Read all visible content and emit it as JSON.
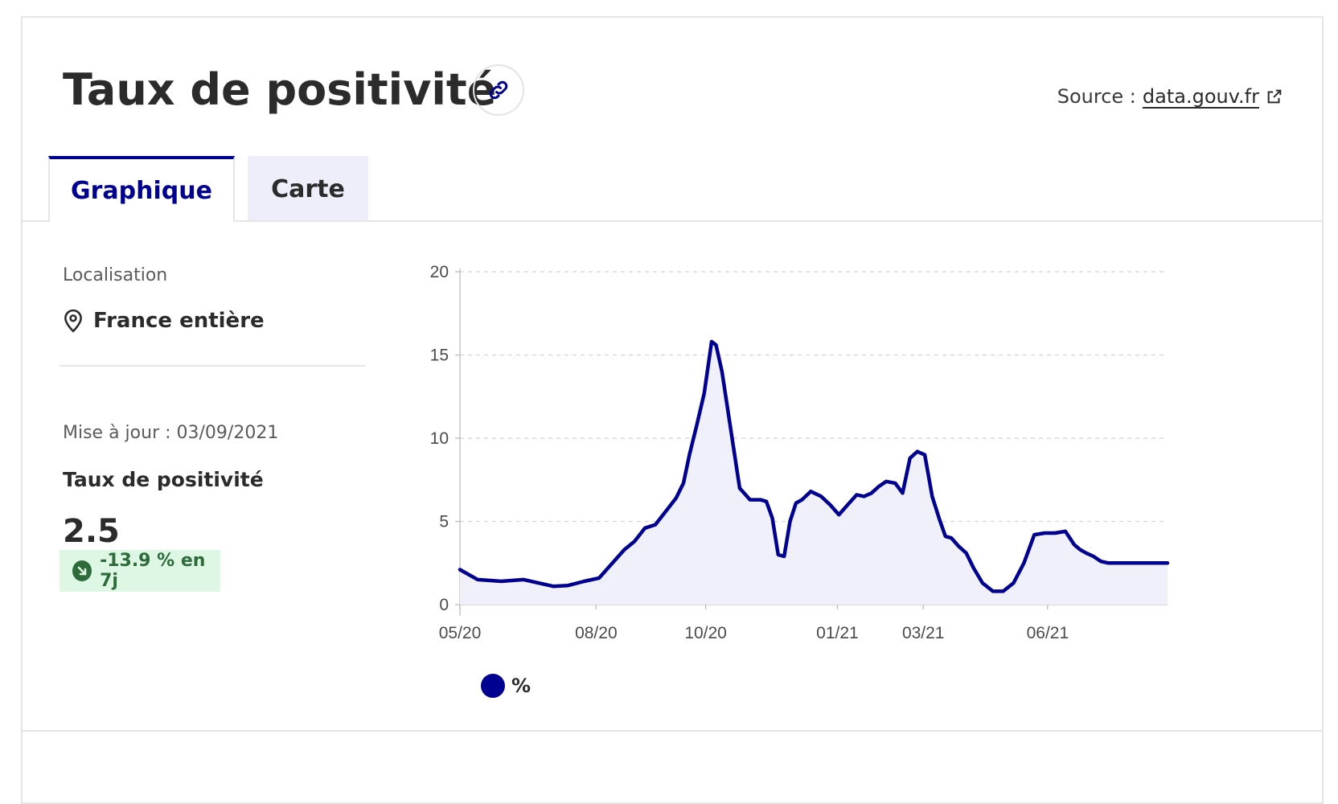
{
  "header": {
    "title": "Taux de positivité",
    "source_label": "Source :",
    "source_link": "data.gouv.fr"
  },
  "tabs": [
    {
      "label": "Graphique",
      "active": true
    },
    {
      "label": "Carte",
      "active": false
    }
  ],
  "sidebar": {
    "location_label": "Localisation",
    "location_value": "France entière",
    "update_text": "Mise à jour : 03/09/2021",
    "metric_label": "Taux de positivité",
    "metric_value": "2.5",
    "trend_text": "-13.9 % en 7j"
  },
  "legend": {
    "label": "%"
  },
  "colors": {
    "accent": "#000091",
    "area_fill": "#f0f0fb",
    "trend_bg": "#ddf7e4",
    "trend_fg": "#2e6b3b"
  },
  "icons": {
    "link": "link-icon",
    "external": "external-link-icon",
    "location": "map-pin-icon",
    "trend": "arrow-down-right-icon"
  },
  "chart_data": {
    "type": "area",
    "title": "",
    "xlabel": "",
    "ylabel": "",
    "ylim": [
      0,
      20
    ],
    "yticks": [
      0,
      5,
      10,
      15,
      20
    ],
    "xticks": [
      "05/20",
      "08/20",
      "10/20",
      "01/21",
      "03/21",
      "06/21"
    ],
    "grid": true,
    "legend_position": "bottom-left",
    "series": [
      {
        "name": "%",
        "x": [
          "2020-05-13",
          "2020-05-25",
          "2020-06-10",
          "2020-06-25",
          "2020-07-05",
          "2020-07-15",
          "2020-07-25",
          "2020-08-05",
          "2020-08-15",
          "2020-08-25",
          "2020-09-01",
          "2020-09-08",
          "2020-09-15",
          "2020-09-22",
          "2020-09-29",
          "2020-10-06",
          "2020-10-11",
          "2020-10-15",
          "2020-10-20",
          "2020-10-25",
          "2020-10-30",
          "2020-11-02",
          "2020-11-06",
          "2020-11-12",
          "2020-11-18",
          "2020-11-25",
          "2020-12-02",
          "2020-12-06",
          "2020-12-10",
          "2020-12-14",
          "2020-12-18",
          "2020-12-22",
          "2020-12-26",
          "2020-12-30",
          "2021-01-05",
          "2021-01-12",
          "2021-01-18",
          "2021-01-24",
          "2021-01-30",
          "2021-02-05",
          "2021-02-10",
          "2021-02-15",
          "2021-02-20",
          "2021-02-25",
          "2021-03-03",
          "2021-03-08",
          "2021-03-13",
          "2021-03-18",
          "2021-03-23",
          "2021-03-28",
          "2021-04-02",
          "2021-04-06",
          "2021-04-10",
          "2021-04-15",
          "2021-04-20",
          "2021-04-25",
          "2021-05-01",
          "2021-05-08",
          "2021-05-15",
          "2021-05-22",
          "2021-05-29",
          "2021-06-05",
          "2021-06-12",
          "2021-06-19",
          "2021-06-26",
          "2021-07-02",
          "2021-07-06",
          "2021-07-10",
          "2021-07-15",
          "2021-07-20",
          "2021-07-25",
          "2021-07-30",
          "2021-08-05",
          "2021-08-12",
          "2021-08-20",
          "2021-08-28",
          "2021-09-03"
        ],
        "values": [
          2.1,
          1.5,
          1.4,
          1.5,
          1.3,
          1.1,
          1.15,
          1.4,
          1.6,
          2.6,
          3.3,
          3.8,
          4.6,
          4.8,
          5.6,
          6.4,
          7.3,
          9.0,
          10.8,
          12.7,
          15.8,
          15.6,
          14.0,
          10.5,
          7.0,
          6.3,
          6.3,
          6.2,
          5.2,
          3.0,
          2.9,
          5.0,
          6.1,
          6.3,
          6.8,
          6.5,
          6.0,
          5.4,
          6.0,
          6.6,
          6.5,
          6.7,
          7.1,
          7.4,
          7.3,
          6.7,
          8.8,
          9.2,
          9.0,
          6.5,
          5.1,
          4.1,
          4.0,
          3.5,
          3.1,
          2.2,
          1.3,
          0.8,
          0.8,
          1.3,
          2.5,
          4.2,
          4.3,
          4.3,
          4.4,
          3.6,
          3.3,
          3.1,
          2.9,
          2.6,
          2.5,
          2.5,
          2.5,
          2.5,
          2.5,
          2.5,
          2.5
        ]
      }
    ]
  }
}
